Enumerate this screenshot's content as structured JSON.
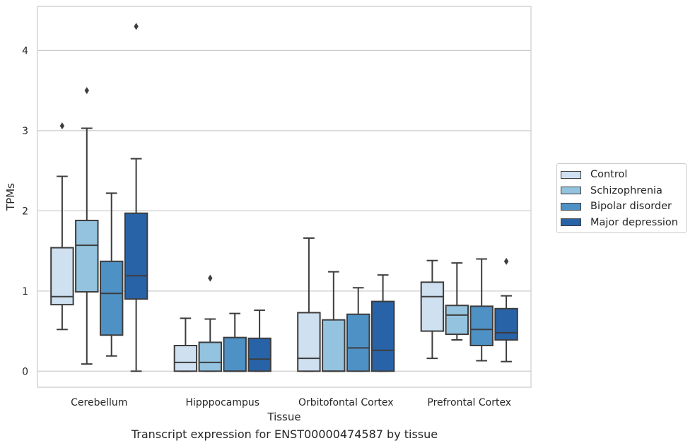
{
  "chart_data": {
    "type": "boxplot",
    "title": "",
    "caption": "Transcript expression for ENST00000474587 by tissue",
    "xlabel": "Tissue",
    "ylabel": "TPMs",
    "ylim": [
      -0.2,
      4.55
    ],
    "yticks": [
      0,
      1,
      2,
      3,
      4
    ],
    "grid": "horizontal",
    "legend_placement": "right",
    "categories": [
      "Cerebellum",
      "Hipppocampus",
      "Orbitofontal Cortex",
      "Prefrontal Cortex"
    ],
    "series": [
      {
        "name": "Control",
        "color": "#cfe0f0",
        "boxes": [
          {
            "whislo": 0.52,
            "q1": 0.83,
            "med": 0.93,
            "q3": 1.54,
            "whishi": 2.43,
            "fliers": [
              3.06
            ]
          },
          {
            "whislo": 0.0,
            "q1": 0.0,
            "med": 0.11,
            "q3": 0.32,
            "whishi": 0.66,
            "fliers": []
          },
          {
            "whislo": 0.0,
            "q1": 0.0,
            "med": 0.16,
            "q3": 0.73,
            "whishi": 1.66,
            "fliers": []
          },
          {
            "whislo": 0.16,
            "q1": 0.5,
            "med": 0.93,
            "q3": 1.11,
            "whishi": 1.38,
            "fliers": []
          }
        ]
      },
      {
        "name": "Schizophrenia",
        "color": "#93c3df",
        "boxes": [
          {
            "whislo": 0.09,
            "q1": 0.99,
            "med": 1.57,
            "q3": 1.88,
            "whishi": 3.03,
            "fliers": [
              3.5
            ]
          },
          {
            "whislo": 0.0,
            "q1": 0.0,
            "med": 0.11,
            "q3": 0.36,
            "whishi": 0.65,
            "fliers": [
              1.16
            ]
          },
          {
            "whislo": 0.0,
            "q1": 0.0,
            "med": 0.0,
            "q3": 0.64,
            "whishi": 1.24,
            "fliers": []
          },
          {
            "whislo": 0.39,
            "q1": 0.46,
            "med": 0.7,
            "q3": 0.82,
            "whishi": 1.35,
            "fliers": []
          }
        ]
      },
      {
        "name": "Bipolar disorder",
        "color": "#4e91c5",
        "boxes": [
          {
            "whislo": 0.19,
            "q1": 0.45,
            "med": 0.97,
            "q3": 1.37,
            "whishi": 2.22,
            "fliers": []
          },
          {
            "whislo": 0.0,
            "q1": 0.0,
            "med": 0.0,
            "q3": 0.42,
            "whishi": 0.72,
            "fliers": []
          },
          {
            "whislo": 0.0,
            "q1": 0.0,
            "med": 0.29,
            "q3": 0.71,
            "whishi": 1.04,
            "fliers": []
          },
          {
            "whislo": 0.13,
            "q1": 0.32,
            "med": 0.52,
            "q3": 0.81,
            "whishi": 1.4,
            "fliers": []
          }
        ]
      },
      {
        "name": "Major depression",
        "color": "#2863a8",
        "boxes": [
          {
            "whislo": 0.0,
            "q1": 0.9,
            "med": 1.19,
            "q3": 1.97,
            "whishi": 2.65,
            "fliers": [
              4.3
            ]
          },
          {
            "whislo": 0.0,
            "q1": 0.0,
            "med": 0.15,
            "q3": 0.41,
            "whishi": 0.76,
            "fliers": []
          },
          {
            "whislo": 0.0,
            "q1": 0.0,
            "med": 0.26,
            "q3": 0.87,
            "whishi": 1.2,
            "fliers": []
          },
          {
            "whislo": 0.12,
            "q1": 0.39,
            "med": 0.48,
            "q3": 0.78,
            "whishi": 0.94,
            "fliers": [
              1.37
            ]
          }
        ]
      }
    ]
  }
}
